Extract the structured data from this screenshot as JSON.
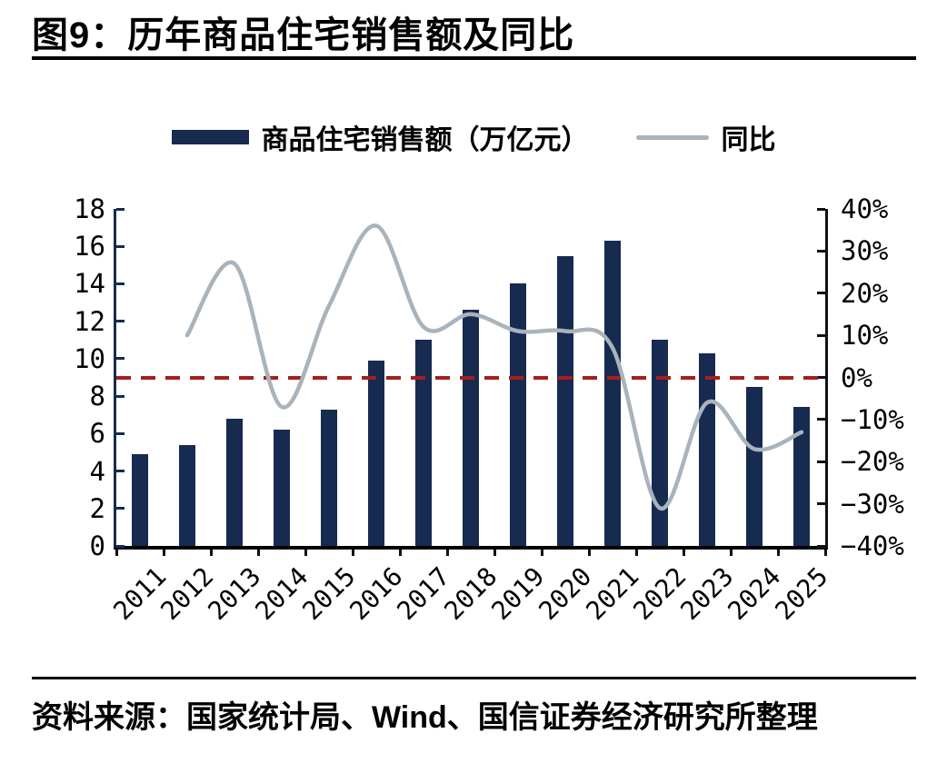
{
  "figure": {
    "title": "图9：历年商品住宅销售额及同比",
    "source": "资料来源：国家统计局、Wind、国信证券经济研究所整理"
  },
  "legend": {
    "bar_label": "商品住宅销售额（万亿元）",
    "line_label": "同比"
  },
  "colors": {
    "bar": "#172A50",
    "line": "#A9B3BC",
    "reference_line": "#A51E1E",
    "axis_left": "#172A50",
    "axis_black": "#111111",
    "text": "#000000"
  },
  "chart_data": {
    "type": "bar",
    "subtype": "combo-bar-line-dual-axis",
    "title": "历年商品住宅销售额及同比",
    "categories": [
      "2011",
      "2012",
      "2013",
      "2014",
      "2015",
      "2016",
      "2017",
      "2018",
      "2019",
      "2020",
      "2021",
      "2022",
      "2023",
      "2024",
      "2025"
    ],
    "series": [
      {
        "name": "商品住宅销售额（万亿元）",
        "type": "bar",
        "axis": "left",
        "values": [
          4.9,
          5.4,
          6.8,
          6.2,
          7.3,
          9.9,
          11.0,
          12.6,
          14.0,
          15.5,
          16.3,
          11.0,
          10.3,
          8.5,
          7.4
        ]
      },
      {
        "name": "同比",
        "type": "line",
        "axis": "right",
        "unit": "%",
        "x": [
          "2012",
          "2013",
          "2014",
          "2015",
          "2016",
          "2017",
          "2018",
          "2019",
          "2020",
          "2021",
          "2022",
          "2023",
          "2024",
          "2025"
        ],
        "values": [
          10,
          27,
          -7,
          17,
          36,
          12,
          15,
          11,
          11,
          7,
          -31,
          -6,
          -17,
          -13
        ]
      }
    ],
    "left_axis": {
      "min": 0,
      "max": 18,
      "tick_labels": [
        "18",
        "16",
        "14",
        "12",
        "10",
        "8",
        "6",
        "4",
        "2",
        "0"
      ]
    },
    "right_axis": {
      "min": -40,
      "max": 40,
      "tick_labels": [
        "40%",
        "30%",
        "20%",
        "10%",
        "0%",
        "−10%",
        "−20%",
        "−30%",
        "−40%"
      ]
    },
    "reference_line": {
      "axis": "right",
      "value": 0,
      "style": "dashed"
    },
    "legend_position": "top",
    "grid": false
  }
}
